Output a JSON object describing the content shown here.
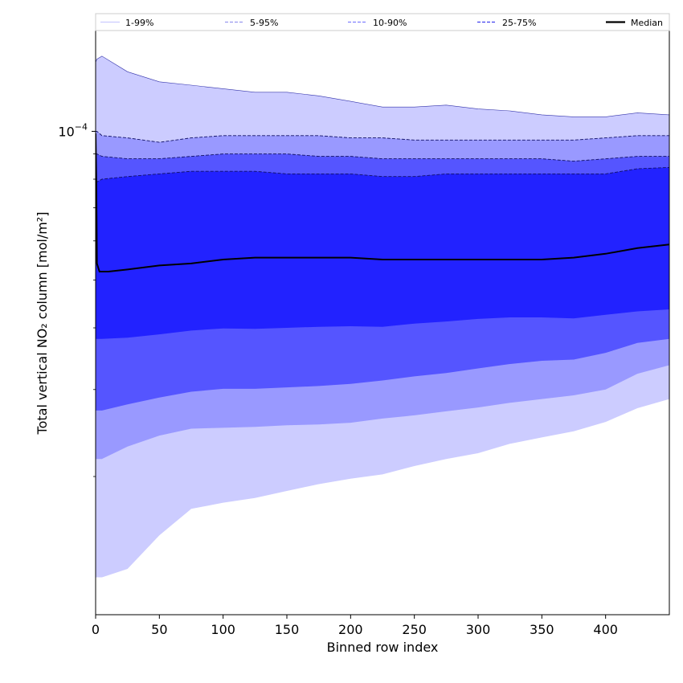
{
  "chart_data": {
    "type": "area",
    "xlabel": "Binned row index",
    "ylabel": "Total vertical NO₂ column [mol/m²]",
    "yscale": "log",
    "xlim": [
      0,
      450
    ],
    "ylim": [
      1.05e-05,
      0.00016
    ],
    "xticks": [
      0,
      50,
      100,
      150,
      200,
      250,
      300,
      350,
      400
    ],
    "xtick_labels": [
      "0",
      "50",
      "100",
      "150",
      "200",
      "250",
      "300",
      "350",
      "400"
    ],
    "ytick_major": [
      0.0001
    ],
    "ytick_major_labels_base": "10",
    "ytick_major_labels_exp": "−4",
    "ytick_minor": [
      2e-05,
      3e-05,
      4e-05,
      5e-05,
      6e-05,
      7e-05,
      8e-05,
      9e-05
    ],
    "legend_position": "top",
    "legend": [
      {
        "label": "1-99%",
        "color": "#ccccff",
        "style": "solid"
      },
      {
        "label": "5-95%",
        "color": "#9999ee",
        "style": "dashed"
      },
      {
        "label": "10-90%",
        "color": "#8080ff",
        "style": "dashed"
      },
      {
        "label": "25-75%",
        "color": "#4040ee",
        "style": "dashed"
      },
      {
        "label": "Median",
        "color": "#000000",
        "style": "solid"
      }
    ],
    "x": [
      0,
      1,
      5,
      25,
      50,
      75,
      100,
      125,
      150,
      175,
      200,
      225,
      250,
      275,
      300,
      325,
      350,
      375,
      400,
      425,
      450
    ],
    "bands": [
      {
        "name": "1-99%",
        "color": "#ccccff",
        "low": [
          1.25e-05,
          1.25e-05,
          1.25e-05,
          1.3e-05,
          1.52e-05,
          1.72e-05,
          1.77e-05,
          1.81e-05,
          1.87e-05,
          1.93e-05,
          1.98e-05,
          2.02e-05,
          2.1e-05,
          2.17e-05,
          2.23e-05,
          2.33e-05,
          2.4e-05,
          2.47e-05,
          2.58e-05,
          2.75e-05,
          2.87e-05
        ],
        "high": [
          0.000138,
          0.00014,
          0.000142,
          0.000132,
          0.000126,
          0.000124,
          0.000122,
          0.00012,
          0.00012,
          0.000118,
          0.000115,
          0.000112,
          0.000112,
          0.000113,
          0.000111,
          0.00011,
          0.000108,
          0.000107,
          0.000107,
          0.000109,
          0.000108
        ]
      },
      {
        "name": "5-95%",
        "color": "#9999ff",
        "low": [
          2.17e-05,
          2.17e-05,
          2.17e-05,
          2.3e-05,
          2.42e-05,
          2.5e-05,
          2.51e-05,
          2.52e-05,
          2.54e-05,
          2.55e-05,
          2.57e-05,
          2.62e-05,
          2.66e-05,
          2.71e-05,
          2.76e-05,
          2.82e-05,
          2.87e-05,
          2.92e-05,
          3e-05,
          3.23e-05,
          3.36e-05
        ],
        "high": [
          0.0001,
          0.0001,
          9.8e-05,
          9.7e-05,
          9.5e-05,
          9.7e-05,
          9.8e-05,
          9.8e-05,
          9.8e-05,
          9.8e-05,
          9.7e-05,
          9.7e-05,
          9.6e-05,
          9.6e-05,
          9.6e-05,
          9.6e-05,
          9.6e-05,
          9.6e-05,
          9.7e-05,
          9.8e-05,
          9.8e-05
        ]
      },
      {
        "name": "10-90%",
        "color": "#5555ff",
        "low": [
          2.72e-05,
          2.72e-05,
          2.72e-05,
          2.8e-05,
          2.89e-05,
          2.97e-05,
          3.01e-05,
          3.01e-05,
          3.03e-05,
          3.05e-05,
          3.08e-05,
          3.13e-05,
          3.19e-05,
          3.24e-05,
          3.31e-05,
          3.38e-05,
          3.43e-05,
          3.45e-05,
          3.56e-05,
          3.73e-05,
          3.8e-05
        ],
        "high": [
          9e-05,
          9e-05,
          8.9e-05,
          8.8e-05,
          8.8e-05,
          8.9e-05,
          9e-05,
          9e-05,
          9e-05,
          8.9e-05,
          8.9e-05,
          8.8e-05,
          8.8e-05,
          8.8e-05,
          8.8e-05,
          8.8e-05,
          8.8e-05,
          8.7e-05,
          8.8e-05,
          8.9e-05,
          8.9e-05
        ]
      },
      {
        "name": "25-75%",
        "color": "#2222ff",
        "low": [
          3.8e-05,
          3.8e-05,
          3.8e-05,
          3.82e-05,
          3.88e-05,
          3.95e-05,
          3.99e-05,
          3.98e-05,
          4e-05,
          4.02e-05,
          4.03e-05,
          4.02e-05,
          4.08e-05,
          4.12e-05,
          4.17e-05,
          4.2e-05,
          4.2e-05,
          4.18e-05,
          4.25e-05,
          4.32e-05,
          4.36e-05
        ],
        "high": [
          7.9e-05,
          7.9e-05,
          8e-05,
          8.1e-05,
          8.2e-05,
          8.3e-05,
          8.3e-05,
          8.3e-05,
          8.2e-05,
          8.2e-05,
          8.2e-05,
          8.1e-05,
          8.1e-05,
          8.2e-05,
          8.2e-05,
          8.2e-05,
          8.2e-05,
          8.2e-05,
          8.2e-05,
          8.4e-05,
          8.45e-05
        ]
      }
    ],
    "median": {
      "name": "Median",
      "color": "#000000",
      "x": [
        0,
        0.5,
        1,
        3,
        10,
        25,
        50,
        75,
        100,
        125,
        150,
        175,
        200,
        225,
        250,
        275,
        300,
        325,
        350,
        375,
        400,
        425,
        450
      ],
      "values": [
        9.9e-05,
        8e-05,
        5.4e-05,
        5.2e-05,
        5.2e-05,
        5.25e-05,
        5.35e-05,
        5.4e-05,
        5.5e-05,
        5.55e-05,
        5.55e-05,
        5.55e-05,
        5.55e-05,
        5.5e-05,
        5.5e-05,
        5.5e-05,
        5.5e-05,
        5.5e-05,
        5.5e-05,
        5.55e-05,
        5.65e-05,
        5.8e-05,
        5.9e-05
      ]
    }
  }
}
